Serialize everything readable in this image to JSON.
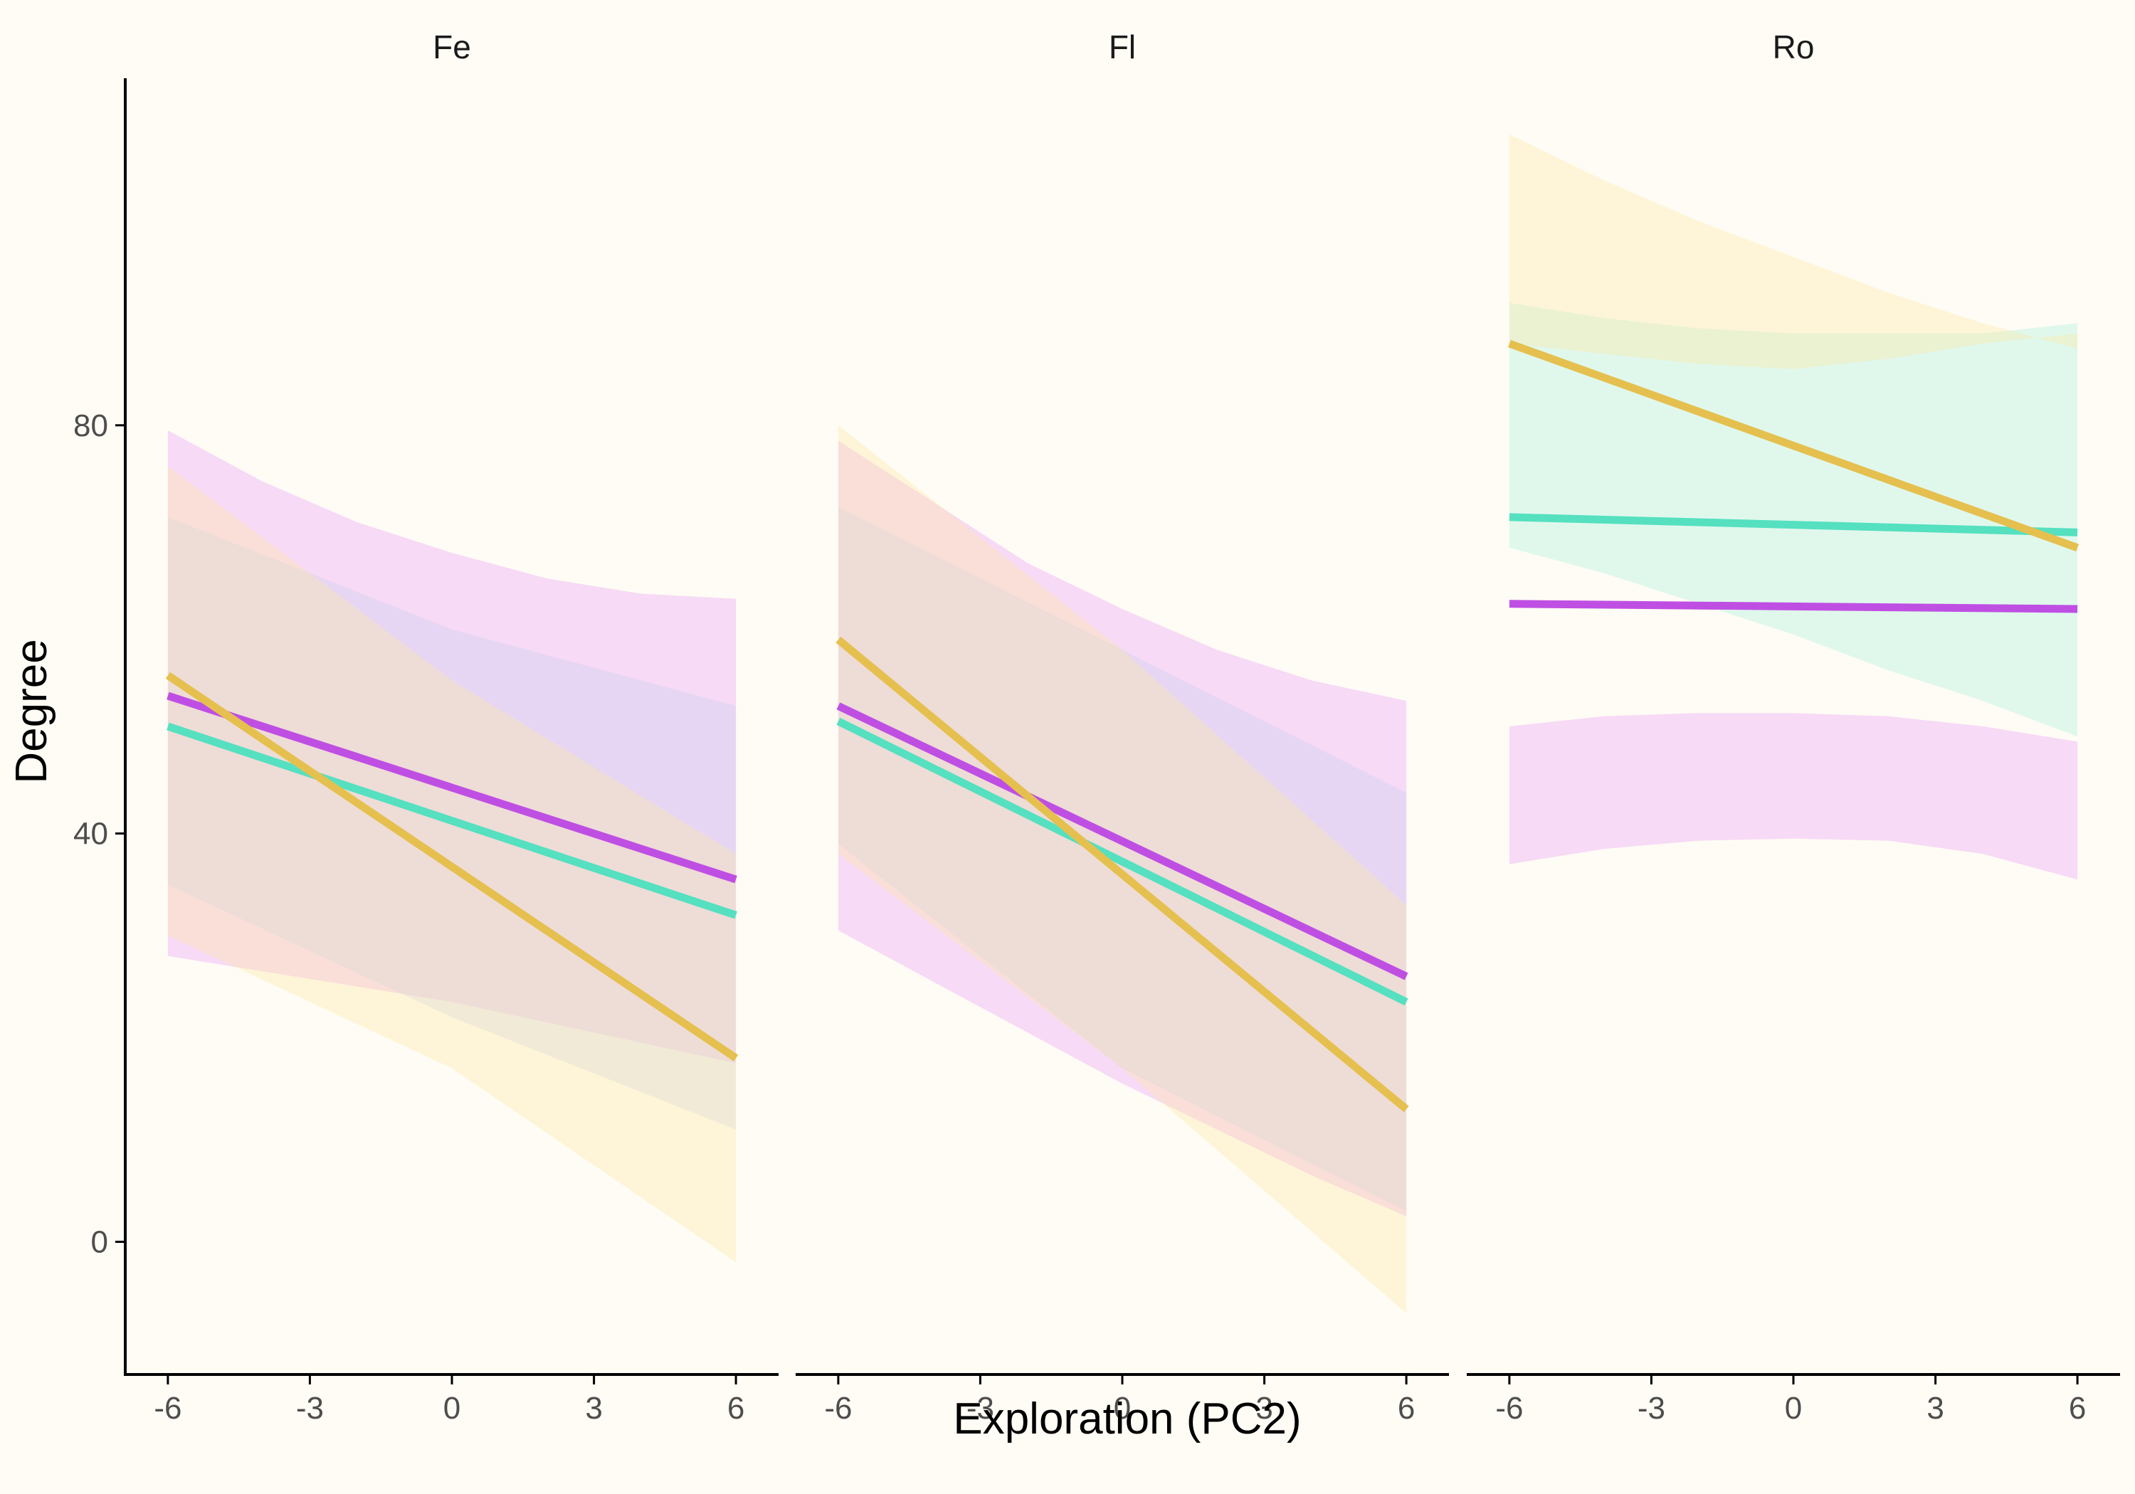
{
  "colors": {
    "background": "#fffcf5",
    "purple": "#bf4fe3",
    "teal": "#55e0c0",
    "gold": "#e5c04f",
    "band_purple": "#e99cf5",
    "band_teal": "#a7f2dc",
    "band_gold": "#fde9a2",
    "band_red": "#f5b0b7",
    "band_lavender": "#c9cdf2",
    "band_grey": "#d0d0cf"
  },
  "chart_data": {
    "type": "line",
    "xlabel": "Exploration (PC2)",
    "ylabel": "Degree",
    "xlim": [
      -6.9,
      6.9
    ],
    "ylim": [
      -13,
      114
    ],
    "x_ticks": [
      "-6",
      "-3",
      "0",
      "3",
      "6"
    ],
    "y_ticks": [
      "0",
      "40",
      "80"
    ],
    "legend": "none",
    "grid": false,
    "panels": [
      {
        "name": "Fe",
        "series": [
          {
            "color": "purple",
            "x": [
              -6,
              6
            ],
            "y": [
              53.5,
              35.5
            ],
            "band_color": "band_purple",
            "band_x": [
              -6,
              -4,
              -2,
              0,
              2,
              4,
              6
            ],
            "band_lower": [
              28,
              26.5,
              25,
              23.5,
              21.5,
              19.5,
              17.5
            ],
            "band_upper": [
              79.5,
              74.5,
              70.5,
              67.5,
              65,
              63.5,
              63
            ]
          },
          {
            "color": "teal",
            "x": [
              -6,
              6
            ],
            "y": [
              50.5,
              32.0
            ],
            "band_color": "band_lavender",
            "band_x": [
              -6,
              0,
              6
            ],
            "band_lower": [
              35,
              22,
              11
            ],
            "band_upper": [
              71,
              60,
              52.5
            ]
          },
          {
            "color": "gold",
            "x": [
              -6,
              6
            ],
            "y": [
              55.5,
              18.0
            ],
            "band_color": "band_gold",
            "band_x": [
              -6,
              0,
              6
            ],
            "band_lower": [
              30,
              17,
              -2
            ],
            "band_upper": [
              76,
              55,
              38
            ]
          }
        ]
      },
      {
        "name": "Fl",
        "series": [
          {
            "color": "purple",
            "x": [
              -6,
              6
            ],
            "y": [
              52.5,
              26.0
            ],
            "band_color": "band_purple",
            "band_x": [
              -6,
              -4,
              -2,
              0,
              2,
              4,
              6
            ],
            "band_lower": [
              30.5,
              25.5,
              20.5,
              15.5,
              11,
              6.5,
              2.5
            ],
            "band_upper": [
              78.5,
              72.5,
              66.5,
              62,
              58,
              55,
              53
            ]
          },
          {
            "color": "teal",
            "x": [
              -6,
              6
            ],
            "y": [
              51.0,
              23.5
            ],
            "band_color": "band_lavender",
            "band_x": [
              -6,
              0,
              6
            ],
            "band_lower": [
              39,
              17,
              3
            ],
            "band_upper": [
              72,
              58,
              44
            ]
          },
          {
            "color": "gold",
            "x": [
              -6,
              6
            ],
            "y": [
              59.0,
              13.0
            ],
            "band_color": "band_gold",
            "band_x": [
              -6,
              0,
              6
            ],
            "band_lower": [
              38,
              17,
              -7
            ],
            "band_upper": [
              80,
              58,
              33
            ]
          }
        ]
      },
      {
        "name": "Ro",
        "series": [
          {
            "color": "purple",
            "x": [
              -6,
              6
            ],
            "y": [
              62.5,
              62.0
            ],
            "band_color": "band_purple",
            "band_x": [
              -6,
              -4,
              -2,
              0,
              2,
              4,
              6
            ],
            "band_lower": [
              37,
              38.5,
              39.3,
              39.5,
              39.3,
              38,
              35.5
            ],
            "band_upper": [
              50.5,
              51.5,
              51.8,
              51.8,
              51.5,
              50.5,
              49
            ]
          },
          {
            "color": "teal",
            "x": [
              -6,
              6
            ],
            "y": [
              71.0,
              69.5
            ],
            "band_color": "band_teal",
            "band_x": [
              -6,
              -4,
              -2,
              0,
              2,
              4,
              6
            ],
            "band_lower": [
              68,
              65.5,
              62.5,
              59.5,
              56,
              53,
              49.5
            ],
            "band_upper": [
              92,
              90.5,
              89.5,
              89,
              89,
              89,
              90
            ]
          },
          {
            "color": "gold",
            "x": [
              -6,
              6
            ],
            "y": [
              88.0,
              68.0
            ],
            "band_color": "band_gold",
            "band_x": [
              -6,
              -4,
              -2,
              0,
              2,
              4,
              6
            ],
            "band_lower": [
              88,
              87,
              86,
              85.5,
              86.5,
              88,
              89
            ],
            "band_upper": [
              108.5,
              104,
              100,
              96.5,
              93,
              90,
              87.5
            ]
          }
        ]
      }
    ]
  }
}
